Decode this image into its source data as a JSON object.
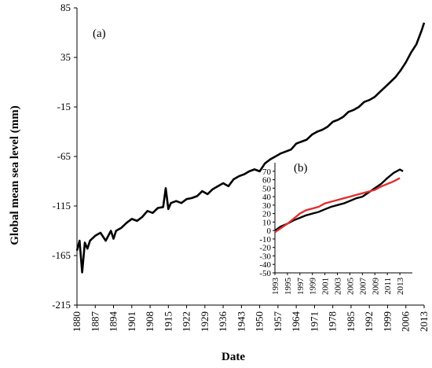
{
  "chart_data": [
    {
      "type": "line",
      "panel_label": "(a)",
      "xlabel": "Date",
      "ylabel": "Global mean sea level (mm)",
      "xlim": [
        1880,
        2013
      ],
      "ylim": [
        -215,
        85
      ],
      "xticks": [
        "1880",
        "1887",
        "1894",
        "1901",
        "1908",
        "1915",
        "1922",
        "1929",
        "1936",
        "1943",
        "1950",
        "1957",
        "1964",
        "1971",
        "1978",
        "1985",
        "1992",
        "1999",
        "2006",
        "2013"
      ],
      "yticks": [
        "85",
        "35",
        "-15",
        "-65",
        "-115",
        "-165",
        "-215"
      ],
      "grid": false,
      "series": [
        {
          "color": "#000000",
          "x": [
            1880,
            1881,
            1882,
            1883,
            1884,
            1885,
            1887,
            1889,
            1891,
            1893,
            1894,
            1895,
            1897,
            1899,
            1901,
            1903,
            1905,
            1907,
            1909,
            1911,
            1913,
            1914,
            1915,
            1916,
            1918,
            1920,
            1922,
            1924,
            1926,
            1928,
            1930,
            1932,
            1934,
            1936,
            1938,
            1940,
            1942,
            1944,
            1946,
            1948,
            1950,
            1952,
            1954,
            1956,
            1958,
            1960,
            1962,
            1964,
            1966,
            1968,
            1970,
            1972,
            1974,
            1976,
            1978,
            1980,
            1982,
            1984,
            1986,
            1988,
            1990,
            1992,
            1994,
            1996,
            1998,
            2000,
            2002,
            2004,
            2006,
            2008,
            2010,
            2012,
            2013
          ],
          "y": [
            -160,
            -150,
            -182,
            -152,
            -158,
            -150,
            -145,
            -142,
            -150,
            -140,
            -148,
            -140,
            -137,
            -132,
            -128,
            -130,
            -126,
            -120,
            -122,
            -117,
            -116,
            -97,
            -118,
            -112,
            -110,
            -112,
            -108,
            -107,
            -105,
            -100,
            -103,
            -98,
            -95,
            -92,
            -95,
            -88,
            -85,
            -83,
            -80,
            -78,
            -80,
            -72,
            -68,
            -65,
            -62,
            -60,
            -58,
            -52,
            -50,
            -48,
            -43,
            -40,
            -38,
            -35,
            -30,
            -28,
            -25,
            -20,
            -18,
            -15,
            -10,
            -8,
            -5,
            0,
            5,
            10,
            15,
            22,
            30,
            40,
            48,
            62,
            70
          ]
        }
      ]
    },
    {
      "type": "line",
      "panel_label": "(b)",
      "xlim": [
        1993,
        2015
      ],
      "ylim": [
        -50,
        80
      ],
      "xticks": [
        "1993",
        "1995",
        "1997",
        "1999",
        "2001",
        "2003",
        "2005",
        "2007",
        "2009",
        "2011",
        "2013"
      ],
      "yticks": [
        "70",
        "60",
        "50",
        "40",
        "30",
        "20",
        "10",
        "0",
        "-10",
        "-20",
        "-30",
        "-40",
        "-50"
      ],
      "grid": false,
      "series": [
        {
          "color": "#000000",
          "x": [
            1993,
            1994,
            1995,
            1996,
            1997,
            1998,
            1999,
            2000,
            2001,
            2002,
            2003,
            2004,
            2005,
            2006,
            2007,
            2008,
            2009,
            2010,
            2011,
            2012,
            2013,
            2013.5
          ],
          "y": [
            0,
            5,
            8,
            12,
            15,
            18,
            20,
            22,
            25,
            28,
            30,
            32,
            35,
            38,
            40,
            45,
            50,
            55,
            62,
            68,
            72,
            70
          ]
        },
        {
          "color": "#e03030",
          "x": [
            1993,
            1994,
            1995,
            1996,
            1997,
            1998,
            1999,
            2000,
            2001,
            2002,
            2003,
            2004,
            2005,
            2006,
            2007,
            2008,
            2009,
            2010,
            2011,
            2012,
            2013
          ],
          "y": [
            -2,
            3,
            8,
            14,
            20,
            24,
            26,
            28,
            32,
            34,
            36,
            38,
            40,
            42,
            44,
            46,
            48,
            52,
            55,
            58,
            62
          ]
        }
      ]
    }
  ]
}
